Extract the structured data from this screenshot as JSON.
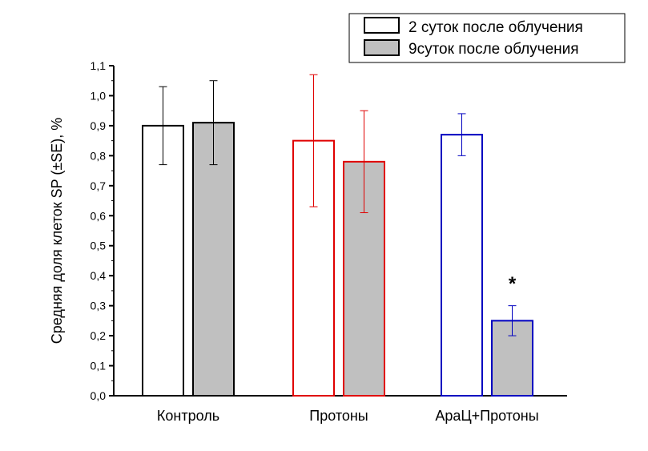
{
  "chart_data": {
    "type": "bar",
    "title": "",
    "xlabel": "",
    "ylabel": "Средняя доля клеток SP (±SE), %",
    "ylim": [
      0,
      1.1
    ],
    "yticks": [
      "0,0",
      "0,1",
      "0,2",
      "0,3",
      "0,4",
      "0,5",
      "0,6",
      "0,7",
      "0,8",
      "0,9",
      "1,0",
      "1,1"
    ],
    "categories": [
      "Контроль",
      "Протоны",
      "АраЦ+Протоны"
    ],
    "category_colors": [
      "#000000",
      "#e00000",
      "#0000c0"
    ],
    "legend_position": "top-right",
    "series": [
      {
        "name": "2 суток после облучения",
        "fill": "#ffffff",
        "values": [
          0.9,
          0.85,
          0.87
        ],
        "err_upper": [
          1.03,
          1.07,
          0.94
        ],
        "err_lower": [
          0.77,
          0.63,
          0.8
        ]
      },
      {
        "name": "9суток после облучения",
        "fill": "#c0c0c0",
        "values": [
          0.91,
          0.78,
          0.25
        ],
        "err_upper": [
          1.05,
          0.95,
          0.3
        ],
        "err_lower": [
          0.77,
          0.61,
          0.2
        ]
      }
    ],
    "annotations": [
      {
        "text": "*",
        "category": "АраЦ+Протоны",
        "series": 1,
        "value": 0.39
      }
    ]
  }
}
